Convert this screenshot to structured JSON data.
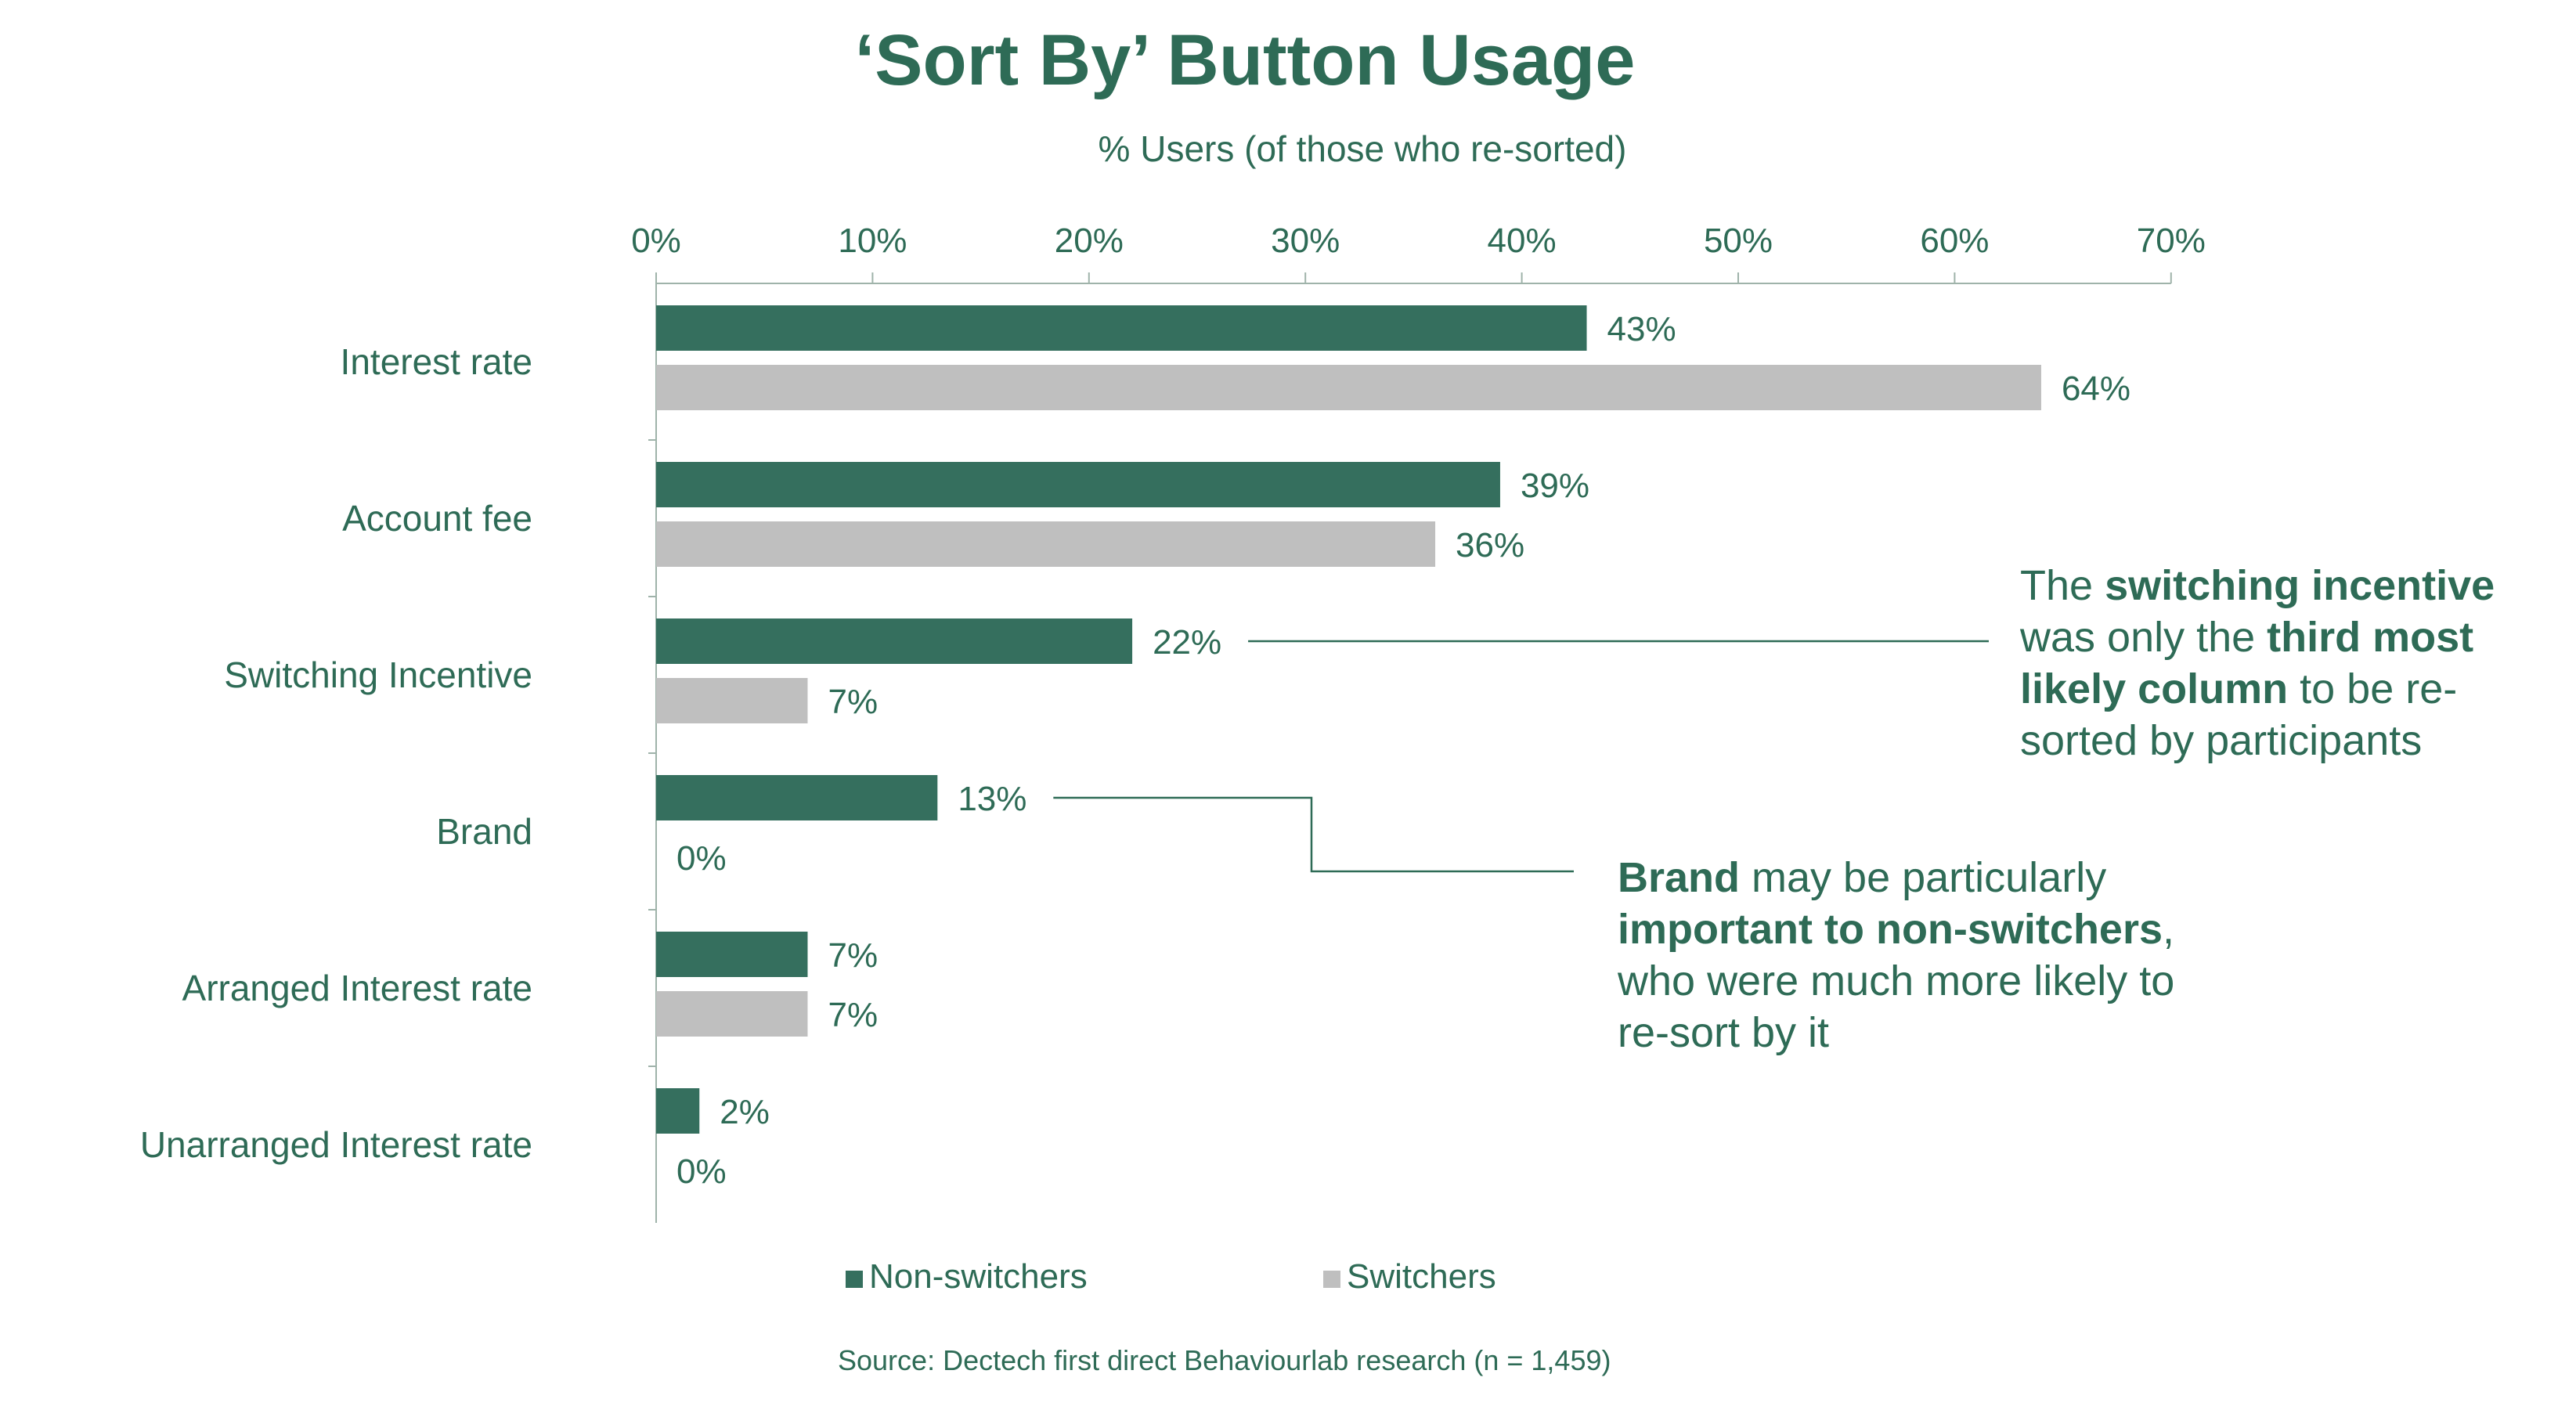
{
  "colors": {
    "green": "#356f5e",
    "grey": "#bfbfbf",
    "text": "#2e6b56",
    "axis": "#9fb3aa"
  },
  "chart_data": {
    "type": "bar",
    "orientation": "horizontal",
    "title": "‘Sort By’ Button Usage",
    "xlabel": "% Users (of those who re-sorted)",
    "xlim": [
      0,
      70
    ],
    "x_ticks": [
      "0%",
      "10%",
      "20%",
      "30%",
      "40%",
      "50%",
      "60%",
      "70%"
    ],
    "x_axis_position": "top",
    "grid": false,
    "legend_position": "bottom",
    "categories": [
      "Interest rate",
      "Account fee",
      "Switching Incentive",
      "Brand",
      "Arranged Interest rate",
      "Unarranged Interest rate"
    ],
    "series": [
      {
        "name": "Non-switchers",
        "color": "#356f5e",
        "values": [
          43,
          39,
          22,
          13,
          7,
          2
        ],
        "labels": [
          "43%",
          "39%",
          "22%",
          "13%",
          "7%",
          "2%"
        ]
      },
      {
        "name": "Switchers",
        "color": "#bfbfbf",
        "values": [
          64,
          36,
          7,
          0,
          7,
          0
        ],
        "labels": [
          "64%",
          "36%",
          "7%",
          "0%",
          "7%",
          "0%"
        ]
      }
    ],
    "annotations": [
      {
        "category": "Switching Incentive",
        "parts": [
          {
            "text": "The ",
            "bold": false
          },
          {
            "text": "switching incentive",
            "bold": true
          },
          {
            "text": " was only the ",
            "bold": false
          },
          {
            "text": "third most likely column",
            "bold": true
          },
          {
            "text": " to be re-sorted by participants",
            "bold": false
          }
        ]
      },
      {
        "category": "Brand",
        "parts": [
          {
            "text": "Brand",
            "bold": true
          },
          {
            "text": " may be particularly ",
            "bold": false
          },
          {
            "text": "important to non-switchers",
            "bold": true
          },
          {
            "text": ", who were much more likely to re-sort by it",
            "bold": false
          }
        ]
      }
    ],
    "source": "Source: Dectech first direct Behaviourlab research (n = 1,459)"
  }
}
